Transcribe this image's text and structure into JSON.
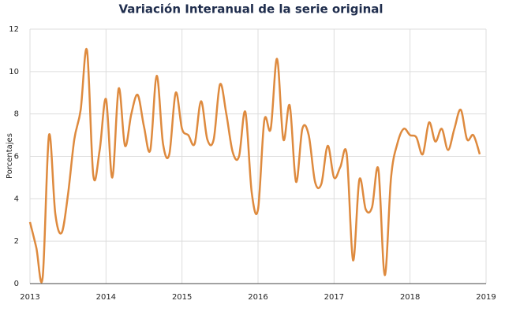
{
  "chart_data": {
    "type": "line",
    "title": "Variación Interanual de la serie original",
    "ylabel": "Porcentajes",
    "x": [
      2013,
      2013.083,
      2013.167,
      2013.25,
      2013.333,
      2013.417,
      2013.5,
      2013.583,
      2013.667,
      2013.75,
      2013.833,
      2013.917,
      2014,
      2014.083,
      2014.167,
      2014.25,
      2014.333,
      2014.417,
      2014.5,
      2014.583,
      2014.667,
      2014.75,
      2014.833,
      2014.917,
      2015,
      2015.083,
      2015.167,
      2015.25,
      2015.333,
      2015.417,
      2015.5,
      2015.583,
      2015.667,
      2015.75,
      2015.833,
      2015.917,
      2016,
      2016.083,
      2016.167,
      2016.25,
      2016.333,
      2016.417,
      2016.5,
      2016.583,
      2016.667,
      2016.75,
      2016.833,
      2016.917,
      2017,
      2017.083,
      2017.167,
      2017.25,
      2017.333,
      2017.417,
      2017.5,
      2017.583,
      2017.667,
      2017.75,
      2017.833,
      2017.917,
      2018,
      2018.083,
      2018.167,
      2018.25,
      2018.333,
      2018.417,
      2018.5,
      2018.583,
      2018.667,
      2018.75,
      2018.833,
      2018.917
    ],
    "series": [
      {
        "name": "Variación interanual",
        "color": "#de8a3e",
        "values": [
          2.9,
          1.7,
          0.3,
          7.0,
          3.3,
          2.4,
          4.2,
          6.8,
          8.2,
          11.0,
          5.1,
          6.3,
          8.7,
          5.0,
          9.2,
          6.5,
          8.0,
          8.9,
          7.4,
          6.3,
          9.8,
          6.6,
          6.1,
          9.0,
          7.3,
          7.0,
          6.6,
          8.6,
          6.8,
          6.8,
          9.4,
          8.0,
          6.2,
          6.0,
          8.1,
          4.3,
          3.5,
          7.7,
          7.3,
          10.6,
          6.8,
          8.4,
          4.8,
          7.3,
          7.0,
          4.8,
          4.7,
          6.5,
          5.0,
          5.5,
          6.1,
          1.1,
          4.9,
          3.5,
          3.6,
          5.4,
          0.4,
          5.0,
          6.6,
          7.3,
          7.0,
          6.9,
          6.1,
          7.6,
          6.7,
          7.3,
          6.3,
          7.3,
          8.2,
          6.8,
          7.0,
          6.1
        ]
      }
    ],
    "xlim": [
      2013,
      2019
    ],
    "xticks": [
      2013,
      2014,
      2015,
      2016,
      2017,
      2018,
      2019
    ],
    "ylim": [
      0,
      12
    ],
    "yticks": [
      0,
      2,
      4,
      6,
      8,
      10,
      12
    ],
    "grid": true
  }
}
